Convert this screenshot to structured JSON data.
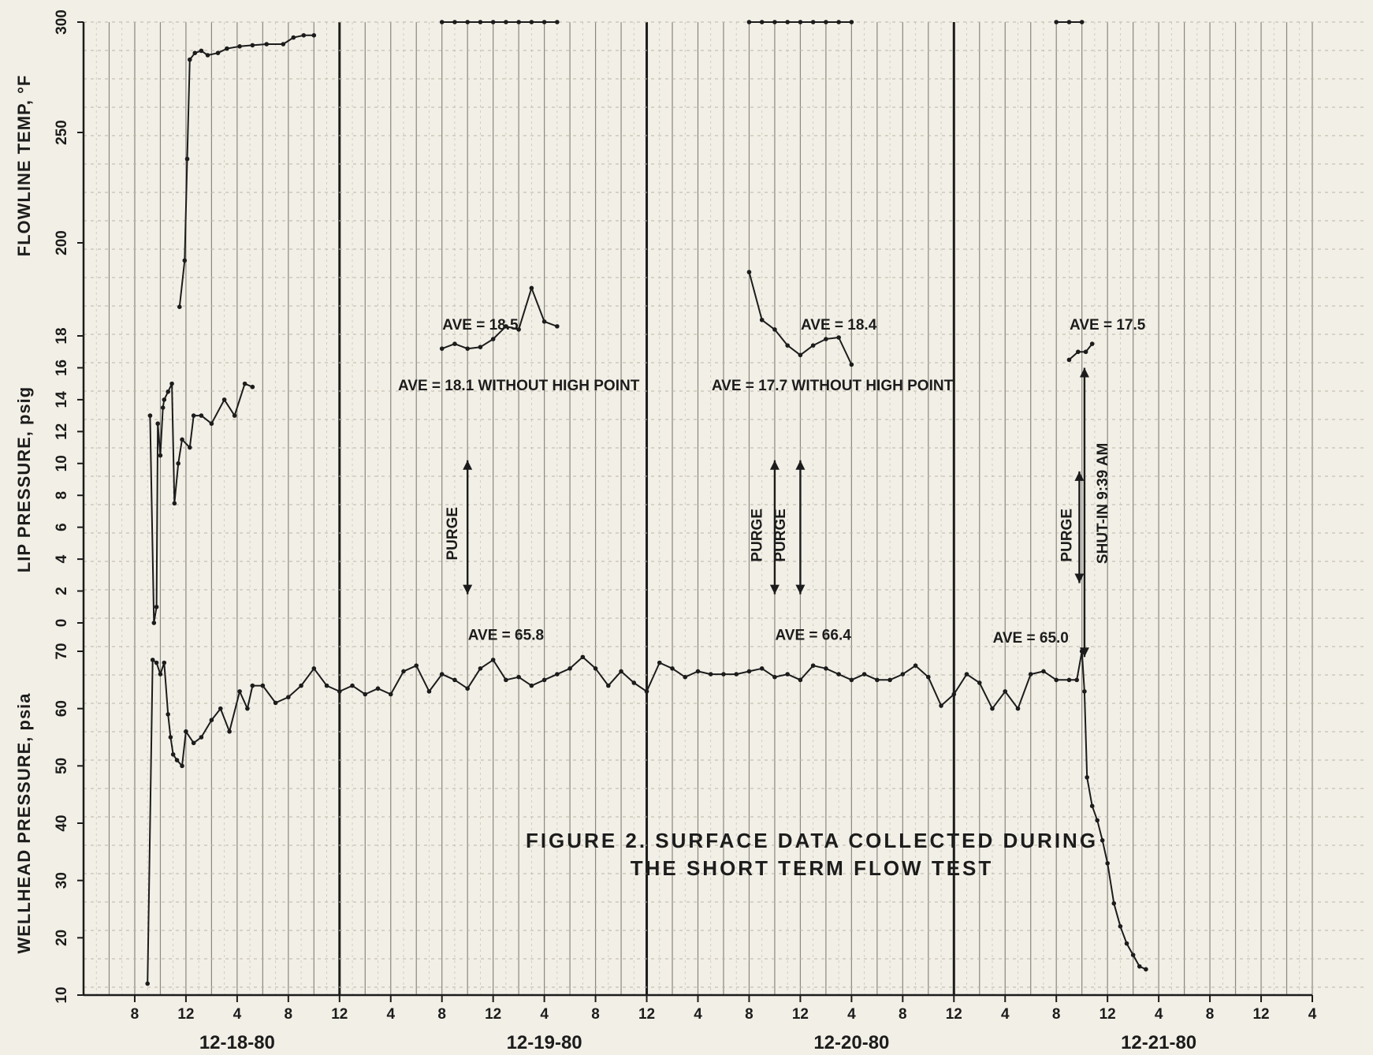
{
  "chart_data": {
    "type": "line",
    "title": "FIGURE  2.   SURFACE  DATA  COLLECTED  DURING",
    "title_line2": "THE  SHORT  TERM  FLOW  TEST",
    "xlabel": "",
    "x_unit": "hours since 12-18-80 00:00",
    "xlim": [
      4,
      100
    ],
    "x_ticks": [
      8,
      12,
      16,
      20,
      24,
      28,
      32,
      36,
      40,
      44,
      48,
      52,
      56,
      60,
      64,
      68,
      72,
      76,
      80,
      84,
      88,
      92,
      96,
      100
    ],
    "x_tick_labels": [
      "8",
      "12",
      "4",
      "8",
      "12",
      "4",
      "8",
      "12",
      "4",
      "8",
      "12",
      "4",
      "8",
      "12",
      "4",
      "8",
      "12",
      "4",
      "8",
      "12",
      "4",
      "8",
      "12",
      "4"
    ],
    "day_dividers": [
      24,
      48,
      72
    ],
    "date_labels": [
      {
        "label": "12-18-80",
        "x": 16
      },
      {
        "label": "12-19-80",
        "x": 40
      },
      {
        "label": "12-20-80",
        "x": 64
      },
      {
        "label": "12-21-80",
        "x": 88
      }
    ],
    "panels": [
      {
        "id": "wellhead",
        "ylabel": "WELLHEAD   PRESSURE, psia",
        "ylim": [
          10,
          70
        ],
        "ticks": [
          10,
          20,
          30,
          40,
          50,
          60,
          70
        ]
      },
      {
        "id": "lip",
        "ylabel": "LIP   PRESSURE, psig",
        "ylim": [
          0,
          18
        ],
        "ticks": [
          0,
          2,
          4,
          6,
          8,
          10,
          12,
          14,
          16,
          18
        ]
      },
      {
        "id": "flowline",
        "ylabel": "FLOWLINE   TEMP, °F",
        "ylim": [
          170,
          300
        ],
        "ticks": [
          200,
          250,
          300
        ]
      }
    ],
    "series": [
      {
        "panel": "wellhead",
        "points": [
          [
            9,
            12
          ],
          [
            9.4,
            68.5
          ],
          [
            9.7,
            68
          ],
          [
            10,
            66
          ],
          [
            10.3,
            68
          ],
          [
            10.6,
            59
          ],
          [
            10.8,
            55
          ],
          [
            11,
            52
          ],
          [
            11.3,
            51
          ],
          [
            11.7,
            50
          ],
          [
            12,
            56
          ],
          [
            12.6,
            54
          ],
          [
            13.2,
            55
          ],
          [
            14,
            58
          ],
          [
            14.7,
            60
          ],
          [
            15.4,
            56
          ],
          [
            16.2,
            63
          ],
          [
            16.8,
            60
          ],
          [
            17.2,
            64
          ],
          [
            18,
            64
          ],
          [
            19,
            61
          ],
          [
            20,
            62
          ],
          [
            21,
            64
          ],
          [
            22,
            67
          ],
          [
            23,
            64
          ],
          [
            24,
            63
          ],
          [
            25,
            64
          ],
          [
            26,
            62.5
          ],
          [
            27,
            63.5
          ],
          [
            28,
            62.5
          ],
          [
            29,
            66.5
          ],
          [
            30,
            67.5
          ],
          [
            31,
            63
          ],
          [
            32,
            66
          ],
          [
            33,
            65
          ],
          [
            34,
            63.5
          ],
          [
            35,
            67
          ],
          [
            36,
            68.5
          ],
          [
            37,
            65
          ],
          [
            38,
            65.5
          ],
          [
            39,
            64
          ],
          [
            40,
            65
          ],
          [
            41,
            66
          ],
          [
            42,
            67
          ],
          [
            43,
            69
          ],
          [
            44,
            67
          ],
          [
            45,
            64
          ],
          [
            46,
            66.5
          ],
          [
            47,
            64.5
          ],
          [
            48,
            63
          ],
          [
            49,
            68
          ],
          [
            50,
            67
          ],
          [
            51,
            65.5
          ],
          [
            52,
            66.5
          ],
          [
            53,
            66
          ],
          [
            54,
            66
          ],
          [
            55,
            66
          ],
          [
            56,
            66.5
          ],
          [
            57,
            67
          ],
          [
            58,
            65.5
          ],
          [
            59,
            66
          ],
          [
            60,
            65
          ],
          [
            61,
            67.5
          ],
          [
            62,
            67
          ],
          [
            63,
            66
          ],
          [
            64,
            65
          ],
          [
            65,
            66
          ],
          [
            66,
            65
          ],
          [
            67,
            65
          ],
          [
            68,
            66
          ],
          [
            69,
            67.5
          ],
          [
            70,
            65.5
          ],
          [
            71,
            60.5
          ],
          [
            72,
            62.5
          ],
          [
            73,
            66
          ],
          [
            74,
            64.5
          ],
          [
            75,
            60
          ],
          [
            76,
            63
          ],
          [
            77,
            60
          ],
          [
            78,
            66
          ],
          [
            79,
            66.5
          ],
          [
            80,
            65
          ],
          [
            81,
            65
          ],
          [
            81.6,
            65
          ],
          [
            82,
            70
          ],
          [
            82.2,
            63
          ],
          [
            82.4,
            48
          ],
          [
            82.8,
            43
          ],
          [
            83.2,
            40.5
          ],
          [
            83.6,
            37
          ],
          [
            84,
            33
          ],
          [
            84.5,
            26
          ],
          [
            85,
            22
          ],
          [
            85.5,
            19
          ],
          [
            86,
            17
          ],
          [
            86.5,
            15
          ],
          [
            87,
            14.5
          ]
        ]
      },
      {
        "panel": "lip",
        "points": [
          [
            9.2,
            13
          ],
          [
            9.5,
            0
          ],
          [
            9.7,
            1
          ],
          [
            9.8,
            12.5
          ],
          [
            10,
            10.5
          ],
          [
            10.2,
            13.5
          ],
          [
            10.3,
            14
          ],
          [
            10.6,
            14.5
          ],
          [
            10.9,
            15
          ],
          [
            11.1,
            7.5
          ],
          [
            11.4,
            10
          ],
          [
            11.7,
            11.5
          ],
          [
            12.3,
            11
          ],
          [
            12.6,
            13
          ],
          [
            13.2,
            13
          ],
          [
            14,
            12.5
          ],
          [
            15,
            14
          ],
          [
            15.8,
            13
          ],
          [
            16.6,
            15
          ],
          [
            17.2,
            14.8
          ]
        ]
      },
      {
        "panel": "flowline",
        "points": [
          [
            11.5,
            171
          ],
          [
            11.9,
            192
          ],
          [
            12.1,
            238
          ],
          [
            12.3,
            283
          ],
          [
            12.7,
            286
          ],
          [
            13.2,
            287
          ],
          [
            13.7,
            285
          ],
          [
            14.5,
            286
          ],
          [
            15.2,
            288
          ],
          [
            16.2,
            289
          ],
          [
            17.2,
            289.5
          ],
          [
            18.3,
            290
          ],
          [
            19.6,
            290
          ],
          [
            20.4,
            293
          ],
          [
            21.2,
            294
          ],
          [
            22,
            294
          ]
        ]
      },
      {
        "panel": "lip",
        "points": [
          [
            32,
            17.2
          ],
          [
            33,
            17.5
          ],
          [
            34,
            17.2
          ],
          [
            35,
            17.3
          ],
          [
            36,
            17.8
          ],
          [
            37,
            18.6
          ],
          [
            38,
            18.4
          ],
          [
            39,
            21
          ],
          [
            40,
            18.9
          ],
          [
            41,
            18.6
          ]
        ]
      },
      {
        "panel": "lip",
        "points": [
          [
            56,
            22
          ],
          [
            57,
            19
          ],
          [
            58,
            18.4
          ],
          [
            59,
            17.4
          ],
          [
            60,
            16.8
          ],
          [
            61,
            17.4
          ],
          [
            62,
            17.8
          ],
          [
            63,
            17.9
          ],
          [
            64,
            16.2
          ]
        ]
      },
      {
        "panel": "lip",
        "points": [
          [
            81,
            16.5
          ],
          [
            81.7,
            17
          ],
          [
            82.3,
            17
          ],
          [
            82.8,
            17.5
          ]
        ]
      },
      {
        "panel": "flowline",
        "points": [
          [
            32,
            300
          ],
          [
            33,
            300
          ],
          [
            34,
            300
          ],
          [
            35,
            300
          ],
          [
            36,
            300
          ],
          [
            37,
            300
          ],
          [
            38,
            300
          ],
          [
            39,
            300
          ],
          [
            40,
            300
          ],
          [
            41,
            300
          ]
        ]
      },
      {
        "panel": "flowline",
        "points": [
          [
            56,
            300
          ],
          [
            57,
            300
          ],
          [
            58,
            300
          ],
          [
            59,
            300
          ],
          [
            60,
            300
          ],
          [
            61,
            300
          ],
          [
            62,
            300
          ],
          [
            63,
            300
          ],
          [
            64,
            300
          ]
        ]
      },
      {
        "panel": "flowline",
        "points": [
          [
            80,
            300
          ],
          [
            81,
            300
          ],
          [
            82,
            300
          ]
        ]
      }
    ],
    "annotations": [
      {
        "text": "AVE = 18.5",
        "x": 35,
        "panel": "lip",
        "y": 18.4
      },
      {
        "text": "AVE = 18.1  WITHOUT  HIGH  POINT",
        "x": 38,
        "panel": "lip",
        "y": 14.6
      },
      {
        "text": "AVE = 18.4",
        "x": 63,
        "panel": "lip",
        "y": 18.4
      },
      {
        "text": "AVE = 17.7  WITHOUT  HIGH  POINT",
        "x": 62.5,
        "panel": "lip",
        "y": 14.6
      },
      {
        "text": "AVE = 17.5",
        "x": 84,
        "panel": "lip",
        "y": 18.4
      },
      {
        "text": "AVE = 65.8",
        "x": 37,
        "panel": "wellhead",
        "y": 72
      },
      {
        "text": "AVE = 66.4",
        "x": 61,
        "panel": "wellhead",
        "y": 72
      },
      {
        "text": "AVE = 65.0",
        "x": 78,
        "panel": "wellhead",
        "y": 71.5
      }
    ],
    "vertical_labels": [
      {
        "text": "PURGE",
        "x": 33.2,
        "y": 5.6
      },
      {
        "text": "PURGE",
        "x": 57,
        "y": 5.5
      },
      {
        "text": "PURGE",
        "x": 58.8,
        "y": 5.5
      },
      {
        "text": "PURGE",
        "x": 81.2,
        "y": 5.5
      },
      {
        "text": "SHUT-IN  9:39 AM",
        "x": 84,
        "y": 7.5
      }
    ],
    "purge_arrows": [
      {
        "x": 34,
        "from": 1.8,
        "to": 10.2
      },
      {
        "x": 58,
        "from": 1.8,
        "to": 10.2
      },
      {
        "x": 60,
        "from": 1.8,
        "to": 10.2
      },
      {
        "x": 81.8,
        "from": 2.5,
        "to": 9.5
      }
    ],
    "shut_in_arrow": {
      "x": 82.2,
      "from_lip": 16,
      "to_wellhead": 69
    },
    "grid": true
  }
}
